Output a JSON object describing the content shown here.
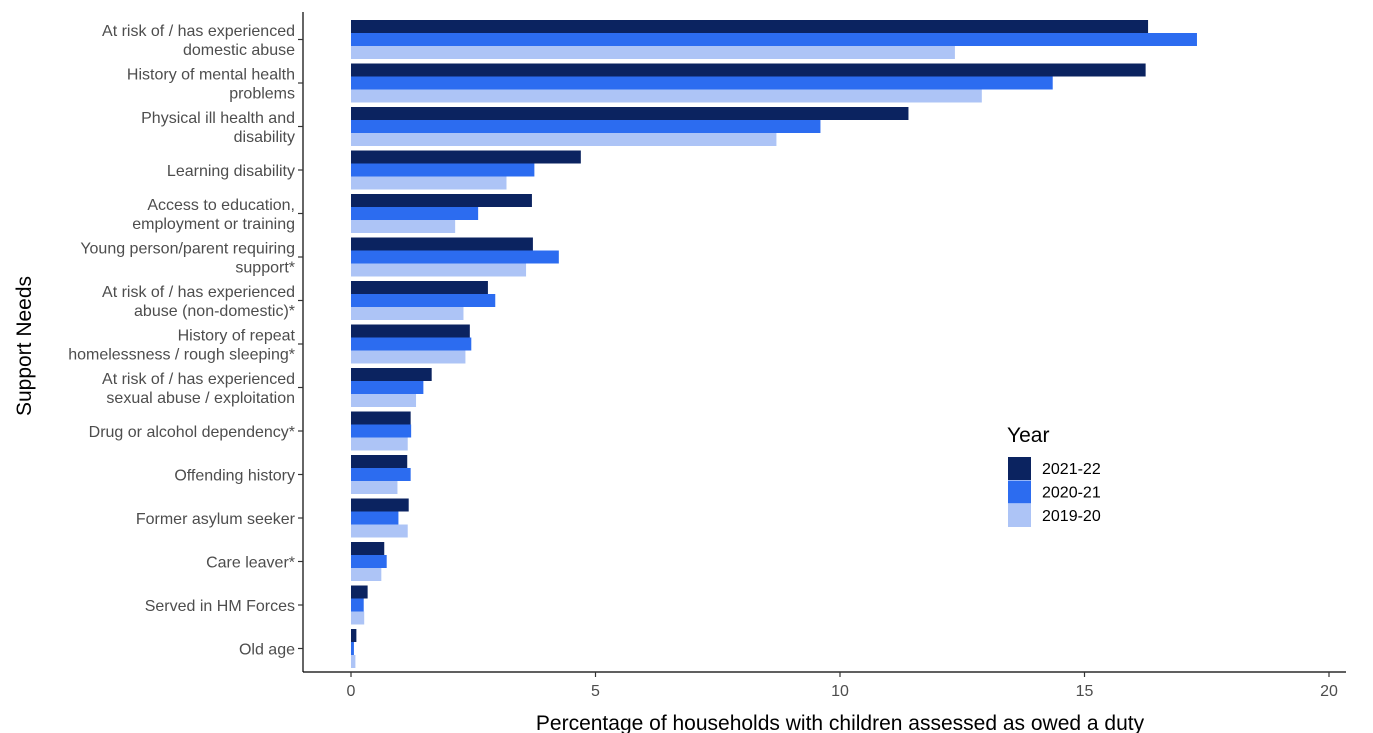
{
  "chart_data": {
    "type": "bar",
    "orientation": "horizontal",
    "xlabel": "Percentage of households with children assessed as owed a duty",
    "ylabel": "Support Needs",
    "xlim": [
      -1,
      20.3
    ],
    "xticks": [
      0,
      5,
      10,
      15,
      20
    ],
    "grid": false,
    "legend_title": "Year",
    "legend_position": "right",
    "categories": [
      [
        "At risk of / has experienced",
        "domestic abuse"
      ],
      [
        "History of mental health",
        "problems"
      ],
      [
        "Physical ill health and",
        "disability"
      ],
      [
        "Learning disability"
      ],
      [
        "Access to education,",
        "employment or training"
      ],
      [
        "Young person/parent requiring",
        "support*"
      ],
      [
        "At risk of / has experienced",
        "abuse (non-domestic)*"
      ],
      [
        "History of repeat",
        "homelessness / rough sleeping*"
      ],
      [
        "At risk of / has experienced",
        "sexual abuse / exploitation"
      ],
      [
        "Drug or alcohol dependency*"
      ],
      [
        "Offending history"
      ],
      [
        "Former asylum seeker"
      ],
      [
        "Care leaver*"
      ],
      [
        "Served in HM Forces"
      ],
      [
        "Old age"
      ]
    ],
    "series": [
      {
        "name": "2021-22",
        "color": "#0b2360",
        "values": [
          16.3,
          16.25,
          11.4,
          4.7,
          3.7,
          3.72,
          2.8,
          2.43,
          1.65,
          1.22,
          1.15,
          1.18,
          0.68,
          0.34,
          0.11
        ]
      },
      {
        "name": "2020-21",
        "color": "#2c6cf0",
        "values": [
          17.3,
          14.35,
          9.6,
          3.75,
          2.6,
          4.25,
          2.95,
          2.46,
          1.48,
          1.23,
          1.22,
          0.97,
          0.73,
          0.26,
          0.06
        ]
      },
      {
        "name": "2019-20",
        "color": "#adc4f6",
        "values": [
          12.35,
          12.9,
          8.7,
          3.18,
          2.13,
          3.58,
          2.3,
          2.34,
          1.33,
          1.16,
          0.95,
          1.16,
          0.62,
          0.27,
          0.09
        ]
      }
    ]
  }
}
